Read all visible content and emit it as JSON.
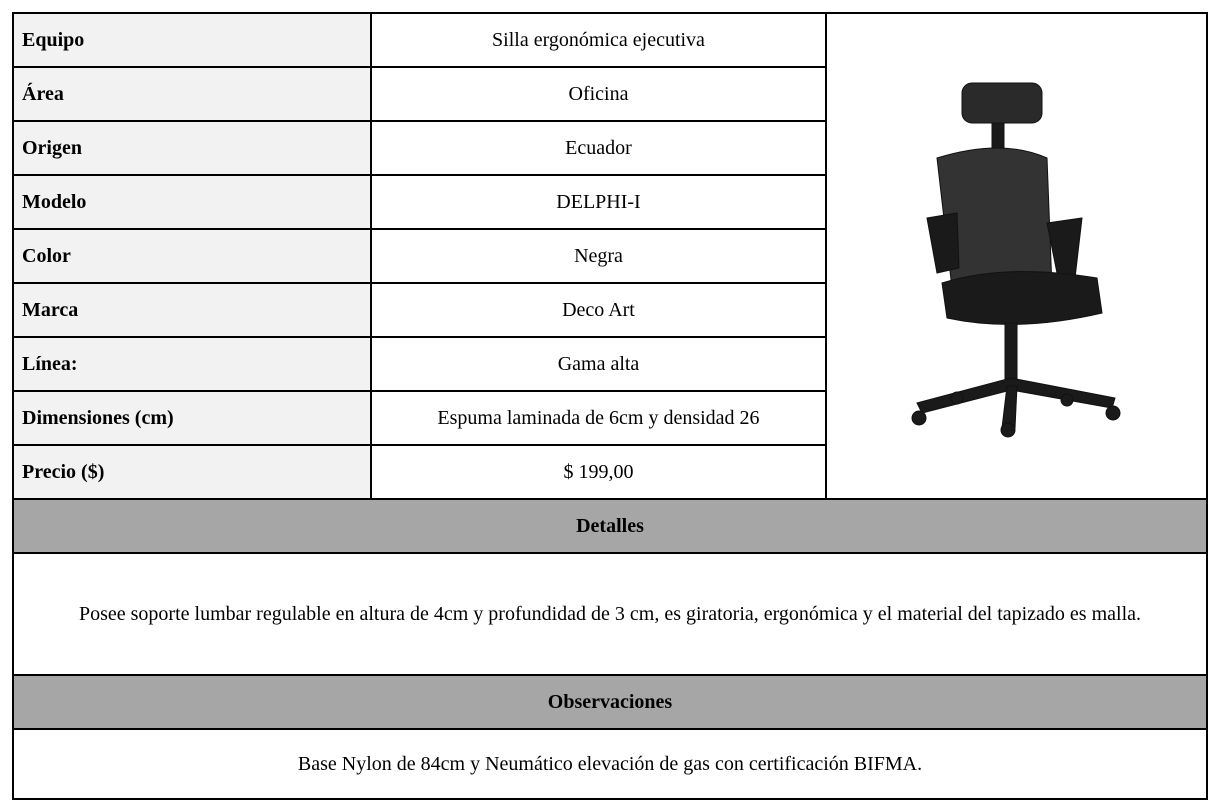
{
  "table": {
    "rows": [
      [
        "Equipo",
        "Silla ergonómica ejecutiva"
      ],
      [
        "Área",
        "Oficina"
      ],
      [
        "Origen",
        "Ecuador"
      ],
      [
        "Modelo",
        "DELPHI-I"
      ],
      [
        "Color",
        "Negra"
      ],
      [
        "Marca",
        "Deco Art"
      ],
      [
        "Línea:",
        "Gama alta"
      ],
      [
        "Dimensiones (cm)",
        "Espuma laminada de 6cm y densidad 26"
      ],
      [
        "Precio ($)",
        "$ 199,00"
      ]
    ]
  },
  "details": {
    "title": "Detalles",
    "text": "Posee soporte lumbar regulable en altura de 4cm y profundidad de 3 cm, es giratoria, ergonómica y el material del tapizado es malla."
  },
  "observations": {
    "title": "Observaciones",
    "text": "Base Nylon de 84cm y Neumático elevación de gas con certificación BIFMA."
  }
}
